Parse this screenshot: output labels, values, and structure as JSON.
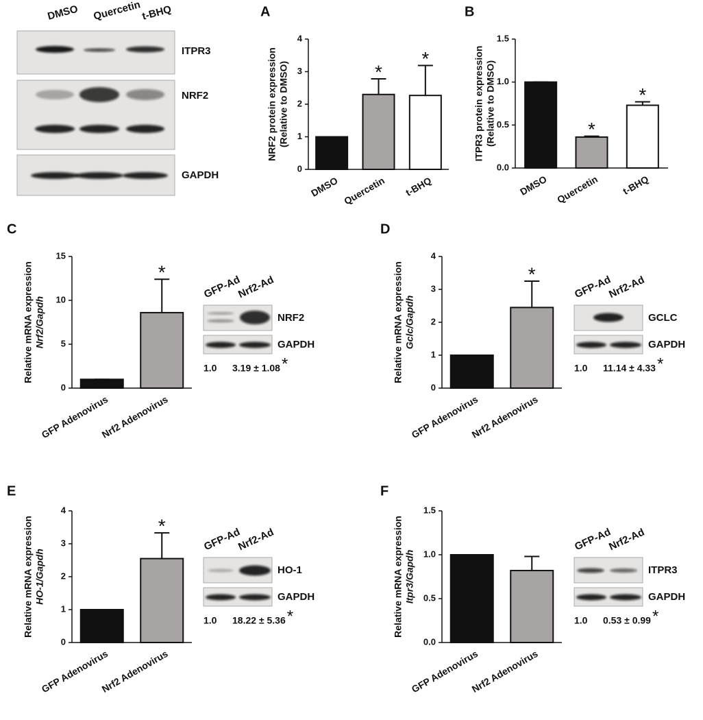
{
  "chart_data": [
    {
      "type": "bar",
      "panel": "A",
      "ylabel": [
        "NRF2 protein expression",
        "(Relative to DMSO)"
      ],
      "categories": [
        "DMSO",
        "Quercetin",
        "t-BHQ"
      ],
      "values": [
        1,
        2.3,
        2.27
      ],
      "errors": [
        0,
        0.48,
        0.92
      ],
      "colors": [
        "#111111",
        "#a8a4a4",
        "#ffffff"
      ],
      "ylim": [
        0,
        4
      ],
      "yticks": [
        0,
        1,
        2,
        3,
        4
      ],
      "annotations": [
        {
          "category": "Quercetin",
          "text": "*"
        },
        {
          "category": "t-BHQ",
          "text": "*"
        }
      ]
    },
    {
      "type": "bar",
      "panel": "B",
      "ylabel": [
        "ITPR3 protein expression",
        "(Relative to DMSO)"
      ],
      "categories": [
        "DMSO",
        "Quercetin",
        "t-BHQ"
      ],
      "values": [
        1,
        0.36,
        0.73
      ],
      "errors": [
        0,
        0.01,
        0.04
      ],
      "colors": [
        "#111111",
        "#a8a4a4",
        "#ffffff"
      ],
      "ylim": [
        0,
        1.5
      ],
      "yticks": [
        {
          "value": 0,
          "label": "0.0"
        },
        0.5,
        {
          "value": 1,
          "label": "1.0"
        },
        1.5
      ],
      "annotations": [
        {
          "category": "Quercetin",
          "text": "*"
        },
        {
          "category": "t-BHQ",
          "text": "*"
        }
      ]
    },
    {
      "type": "bar",
      "panel": "C",
      "ylabel": [
        "Relative mRNA expression",
        "Nrf2/Gapdh"
      ],
      "categories": [
        "GFP Adenovirus",
        "Nrf2 Adenovirus"
      ],
      "values": [
        1,
        8.6
      ],
      "errors": [
        0,
        3.8
      ],
      "colors": [
        "#111111",
        "#a8a4a4"
      ],
      "ylim": [
        0,
        15
      ],
      "yticks": [
        0,
        5,
        10,
        15
      ],
      "annotations": [
        {
          "category": "Nrf2 Adenovirus",
          "text": "*"
        }
      ]
    },
    {
      "type": "bar",
      "panel": "D",
      "ylabel": [
        "Relative mRNA expression",
        "Gclc/Gapdh"
      ],
      "categories": [
        "GFP Adenovirus",
        "Nrf2 Adenovirus"
      ],
      "values": [
        1,
        2.45
      ],
      "errors": [
        0,
        0.8
      ],
      "colors": [
        "#111111",
        "#a8a4a4"
      ],
      "ylim": [
        0,
        4
      ],
      "yticks": [
        0,
        1,
        2,
        3,
        4
      ],
      "annotations": [
        {
          "category": "Nrf2 Adenovirus",
          "text": "*"
        }
      ]
    },
    {
      "type": "bar",
      "panel": "E",
      "ylabel": [
        "Relative mRNA expression",
        "HO-1/Gapdh"
      ],
      "categories": [
        "GFP Adenovirus",
        "Nrf2 Adenovirus"
      ],
      "values": [
        1,
        2.55
      ],
      "errors": [
        0,
        0.78
      ],
      "colors": [
        "#111111",
        "#a8a4a4"
      ],
      "ylim": [
        0,
        4
      ],
      "yticks": [
        0,
        1,
        2,
        3,
        4
      ],
      "annotations": [
        {
          "category": "Nrf2 Adenovirus",
          "text": "*"
        }
      ]
    },
    {
      "type": "bar",
      "panel": "F",
      "ylabel": [
        "Relative mRNA expression",
        "Itpr3/Gapdh"
      ],
      "categories": [
        "GFP Adenovirus",
        "Nrf2 Adenovirus"
      ],
      "values": [
        1,
        0.82
      ],
      "errors": [
        0,
        0.16
      ],
      "colors": [
        "#111111",
        "#a8a4a4"
      ],
      "ylim": [
        0,
        1.5
      ],
      "yticks": [
        {
          "value": 0,
          "label": "0.0"
        },
        0.5,
        {
          "value": 1,
          "label": "1.0"
        },
        1.5
      ],
      "annotations": []
    }
  ],
  "western_blots": [
    {
      "lanes": [
        "DMSO",
        "Quercetin",
        "t-BHQ"
      ],
      "proteins": [
        "ITPR3",
        "NRF2",
        "GAPDH"
      ]
    },
    {
      "lanes": [
        "GFP-Ad",
        "Nrf2-Ad"
      ],
      "proteins": [
        "NRF2",
        "GAPDH"
      ],
      "quantification": [
        "1.0",
        "3.19 ± 1.08"
      ],
      "significance": "*"
    },
    {
      "lanes": [
        "GFP-Ad",
        "Nrf2-Ad"
      ],
      "proteins": [
        "GCLC",
        "GAPDH"
      ],
      "quantification": [
        "1.0",
        "11.14 ± 4.33"
      ],
      "significance": "*"
    },
    {
      "lanes": [
        "GFP-Ad",
        "Nrf2-Ad"
      ],
      "proteins": [
        "HO-1",
        "GAPDH"
      ],
      "quantification": [
        "1.0",
        "18.22 ± 5.36"
      ],
      "significance": "*"
    },
    {
      "lanes": [
        "GFP-Ad",
        "Nrf2-Ad"
      ],
      "proteins": [
        "ITPR3",
        "GAPDH"
      ],
      "quantification": [
        "1.0",
        "0.53 ± 0.99"
      ],
      "significance": "*"
    }
  ]
}
